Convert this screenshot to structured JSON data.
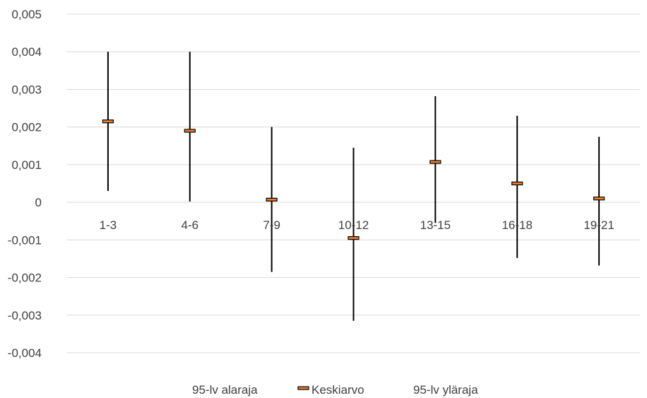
{
  "chart_data": {
    "type": "line",
    "subtype": "high-low-mean (error bars)",
    "categories": [
      "1-3",
      "4-6",
      "7-9",
      "10-12",
      "13-15",
      "16-18",
      "19-21"
    ],
    "series": [
      {
        "name": "95-lv alaraja",
        "values": [
          0.0003,
          2e-05,
          -0.00185,
          -0.00315,
          -0.00055,
          -0.00148,
          -0.00168
        ]
      },
      {
        "name": "Keskiarvo",
        "values": [
          0.00215,
          0.0019,
          7e-05,
          -0.00095,
          0.00107,
          0.0005,
          0.0001
        ]
      },
      {
        "name": "95-lv yläraja",
        "values": [
          0.004,
          0.004,
          0.002,
          0.00145,
          0.00282,
          0.0023,
          0.00174
        ]
      }
    ],
    "ylim": [
      -0.004,
      0.005
    ],
    "yticks": [
      -0.004,
      -0.003,
      -0.002,
      -0.001,
      0,
      0.001,
      0.002,
      0.003,
      0.004,
      0.005
    ],
    "ytick_labels": [
      "-0,004",
      "-0,003",
      "-0,002",
      "-0,001",
      "0",
      "0,001",
      "0,002",
      "0,003",
      "0,004",
      "0,005"
    ],
    "grid": true,
    "legend_position": "bottom",
    "colors": {
      "range_line": "#000000",
      "mean_fill": "#ED7D31",
      "mean_stroke": "#000000",
      "grid": "#D9D9D9",
      "text": "#404040"
    },
    "title": "",
    "xlabel": "",
    "ylabel": ""
  }
}
